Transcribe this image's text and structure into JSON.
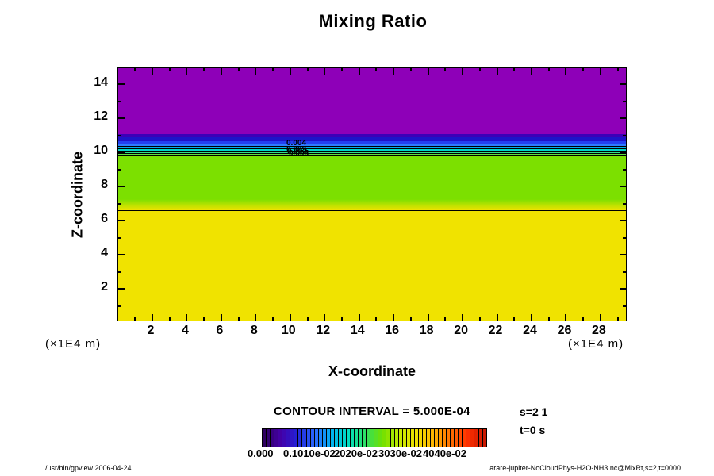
{
  "title": "Mixing Ratio",
  "axes": {
    "x_label": "X-coordinate",
    "y_label": "Z-coordinate",
    "x_unit_left": "(×1E4 m)",
    "x_unit_right": "(×1E4 m)",
    "x_tick_labels": [
      2,
      4,
      6,
      8,
      10,
      12,
      14,
      16,
      18,
      20,
      22,
      24,
      26,
      28
    ],
    "y_tick_labels": [
      2,
      4,
      6,
      8,
      10,
      12,
      14
    ]
  },
  "legend": {
    "contour_interval_text": "CONTOUR INTERVAL = 5.000E-04",
    "colorbar_labels": [
      "0.000",
      "0.1010e-02",
      "2020e-02",
      "3030e-02",
      "4040e-02"
    ],
    "annotations": [
      "s=2 1",
      "t=0 s"
    ]
  },
  "footer": {
    "left": "/usr/bin/gpview 2006-04-24",
    "right": "arare-jupiter-NoCloudPhys-H2O-NH3.nc@MixRt,s=2,t=0000"
  },
  "chart_data": {
    "type": "heatmap",
    "title": "Mixing Ratio",
    "xlabel": "X-coordinate (×1E4 m)",
    "ylabel": "Z-coordinate (×1E4 m)",
    "xlim": [
      0,
      29.6
    ],
    "ylim": [
      0,
      14.9
    ],
    "x_minor_tick_step": 1,
    "y_minor_tick_step": 1,
    "grid": false,
    "contour_interval": 0.0005,
    "colorbar_range": [
      0.0,
      0.0404
    ],
    "field_description": "Mixing ratio uniform in x; layered in z: ~0 above z=11 (purple), sharp gradient 0 to 0.015 between z=11 and z=9.7, ~0.017 green layer from z=9.7 down to z=6.56, ~0.025 yellow layer below z=6.56",
    "bands": [
      {
        "z_top": 14.88,
        "z_bottom": 11.02,
        "value": 0.0,
        "color": "#8E00B8"
      },
      {
        "z_top": 11.02,
        "z_bottom": 10.84,
        "value": 0.0005,
        "color": "#3C00B8"
      },
      {
        "z_top": 10.84,
        "z_bottom": 10.6,
        "value": 0.001,
        "color": "#1E14C8"
      },
      {
        "z_top": 10.6,
        "z_bottom": 10.42,
        "value": 0.0015,
        "color": "#2440F0"
      },
      {
        "z_top": 10.42,
        "z_bottom": 10.28,
        "value": 0.002,
        "color": "#2E7CFF"
      },
      {
        "z_top": 10.28,
        "z_bottom": 10.14,
        "value": 0.0025,
        "color": "#00AEEF"
      },
      {
        "z_top": 10.14,
        "z_bottom": 10.0,
        "value": 0.003,
        "color": "#00D8C8"
      },
      {
        "z_top": 10.0,
        "z_bottom": 9.86,
        "value": 0.0035,
        "color": "#2FE08C"
      },
      {
        "z_top": 9.86,
        "z_bottom": 9.72,
        "value": 0.004,
        "color": "#5FE040"
      },
      {
        "z_top": 9.72,
        "z_bottom": 7.21,
        "value": 0.017,
        "color": "#7CE000"
      },
      {
        "z_top": 7.21,
        "z_bottom": 6.56,
        "value": 0.02,
        "color": "#7CE000",
        "color2": "#EFE300"
      },
      {
        "z_top": 6.56,
        "z_bottom": 0.0,
        "value": 0.025,
        "color": "#F0E300"
      }
    ],
    "contour_lines_z": [
      10.33,
      10.19,
      10.05,
      9.91,
      9.77,
      6.56
    ],
    "contour_point_labels": [
      {
        "text": "0.004",
        "x": 360,
        "y": 175
      },
      {
        "text": "0.003",
        "x": 360,
        "y": 183
      },
      {
        "text": "0.002",
        "x": 361,
        "y": 186
      },
      {
        "text": "0.005",
        "x": 363,
        "y": 188
      }
    ],
    "colorbar_anchor_colors": [
      "#2E0060",
      "#4400A8",
      "#2222D8",
      "#2A6CFF",
      "#00B4F0",
      "#00E0C0",
      "#30E060",
      "#70E000",
      "#C8E800",
      "#F0E000",
      "#FFB400",
      "#FF7000",
      "#FF3000",
      "#C81800"
    ],
    "colorbar_cells": 56,
    "legend_position": "bottom"
  }
}
